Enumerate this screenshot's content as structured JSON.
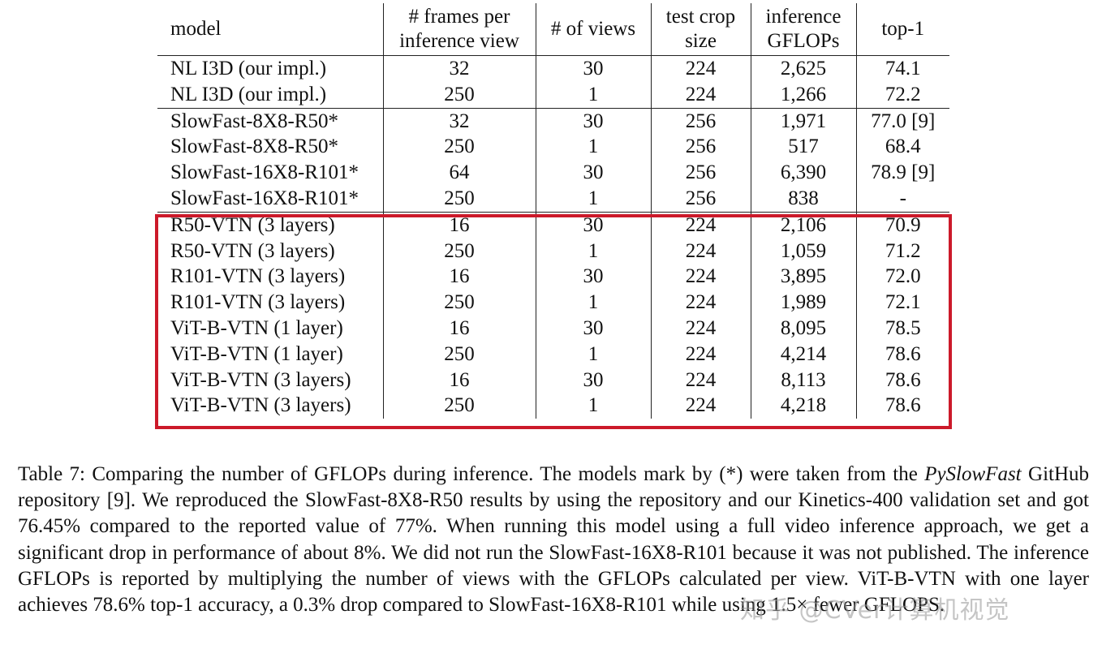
{
  "table": {
    "headers": [
      {
        "line1": "model",
        "line2": ""
      },
      {
        "line1": "# frames per",
        "line2": "inference view"
      },
      {
        "line1": "# of views",
        "line2": ""
      },
      {
        "line1": "test crop",
        "line2": "size"
      },
      {
        "line1": "inference",
        "line2": "GFLOPs"
      },
      {
        "line1": "top-1",
        "line2": ""
      }
    ],
    "groups": [
      [
        [
          "NL I3D (our impl.)",
          "32",
          "30",
          "224",
          "2,625",
          "74.1"
        ],
        [
          "NL I3D (our impl.)",
          "250",
          "1",
          "224",
          "1,266",
          "72.2"
        ]
      ],
      [
        [
          "SlowFast-8X8-R50*",
          "32",
          "30",
          "256",
          "1,971",
          "77.0 [9]"
        ],
        [
          "SlowFast-8X8-R50*",
          "250",
          "1",
          "256",
          "517",
          "68.4"
        ],
        [
          "SlowFast-16X8-R101*",
          "64",
          "30",
          "256",
          "6,390",
          "78.9 [9]"
        ],
        [
          "SlowFast-16X8-R101*",
          "250",
          "1",
          "256",
          "838",
          "-"
        ]
      ],
      [
        [
          "R50-VTN (3 layers)",
          "16",
          "30",
          "224",
          "2,106",
          "70.9"
        ],
        [
          "R50-VTN (3 layers)",
          "250",
          "1",
          "224",
          "1,059",
          "71.2"
        ],
        [
          "R101-VTN (3 layers)",
          "16",
          "30",
          "224",
          "3,895",
          "72.0"
        ],
        [
          "R101-VTN (3 layers)",
          "250",
          "1",
          "224",
          "1,989",
          "72.1"
        ],
        [
          "ViT-B-VTN (1 layer)",
          "16",
          "30",
          "224",
          "8,095",
          "78.5"
        ],
        [
          "ViT-B-VTN (1 layer)",
          "250",
          "1",
          "224",
          "4,214",
          "78.6"
        ],
        [
          "ViT-B-VTN (3 layers)",
          "16",
          "30",
          "224",
          "8,113",
          "78.6"
        ],
        [
          "ViT-B-VTN (3 layers)",
          "250",
          "1",
          "224",
          "4,218",
          "78.6"
        ]
      ]
    ],
    "highlight_color": "#cc1a2a"
  },
  "caption": {
    "part1": "Table 7: Comparing the number of GFLOPs during inference. The models mark by (*) were taken from the ",
    "italic": "PySlowFast",
    "part2": " GitHub repository [9]. We reproduced the SlowFast-8X8-R50 results by using the repository and our Kinetics-400 validation set and got 76.45% compared to the reported value of 77%. When running this model using a full video inference approach, we get a significant drop in performance of about 8%. We did not run the SlowFast-16X8-R101 because it was not published. The inference GFLOPs is reported by multiplying the number of views with the GFLOPs calculated per view. ViT-B-VTN with one layer achieves 78.6% top-1 accuracy, a 0.3% drop compared to SlowFast-16X8-R101 while using 1.5× fewer GFLOPS."
  },
  "watermark": {
    "text": "知乎 @CVer计算机视觉"
  }
}
